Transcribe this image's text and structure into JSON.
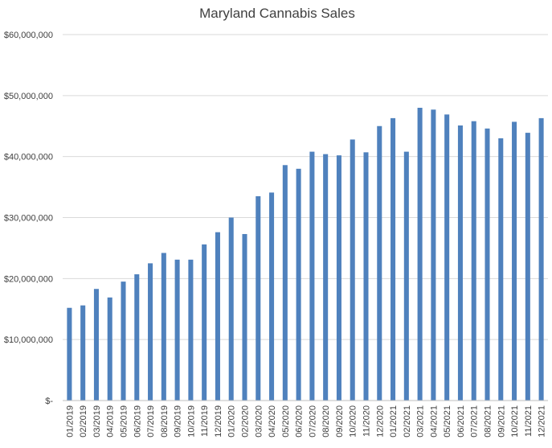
{
  "chart_data": {
    "type": "bar",
    "title": "Maryland Cannabis Sales",
    "xlabel": "",
    "ylabel": "",
    "ylim": [
      0,
      60000000
    ],
    "yticks": [
      0,
      10000000,
      20000000,
      30000000,
      40000000,
      50000000,
      60000000
    ],
    "ytick_labels": [
      "$-",
      "$10,000,000",
      "$20,000,000",
      "$30,000,000",
      "$40,000,000",
      "$50,000,000",
      "$60,000,000"
    ],
    "grid": true,
    "legend": "none",
    "bar_color": "#4F81BD",
    "categories": [
      "01/2019",
      "02/2019",
      "03/2019",
      "04/2019",
      "05/2019",
      "06/2019",
      "07/2019",
      "08/2019",
      "09/2019",
      "10/2019",
      "11/2019",
      "12/2019",
      "01/2020",
      "02/2020",
      "03/2020",
      "04/2020",
      "05/2020",
      "06/2020",
      "07/2020",
      "08/2020",
      "09/2020",
      "10/2020",
      "11/2020",
      "12/2020",
      "01/2021",
      "02/2021",
      "03/2021",
      "04/2021",
      "05/2021",
      "06/2021",
      "07/2021",
      "08/2021",
      "09/2021",
      "10/2021",
      "11/2021",
      "12/2021"
    ],
    "values": [
      15200000,
      15600000,
      18300000,
      16900000,
      19500000,
      20700000,
      22500000,
      24200000,
      23100000,
      23100000,
      25600000,
      27600000,
      30000000,
      27300000,
      33500000,
      34100000,
      38600000,
      38000000,
      40800000,
      40400000,
      40200000,
      42800000,
      40700000,
      45000000,
      46300000,
      40800000,
      48000000,
      47700000,
      46900000,
      45100000,
      45800000,
      44600000,
      43000000,
      45700000,
      43900000,
      46300000
    ]
  }
}
